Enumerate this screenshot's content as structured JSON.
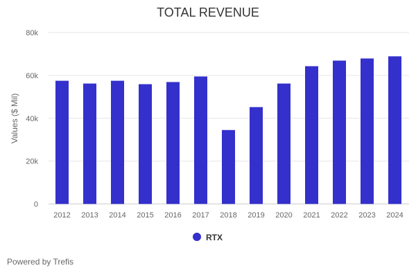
{
  "chart_data": {
    "type": "bar",
    "title": "TOTAL REVENUE",
    "xlabel": "",
    "ylabel": "Values ($ Mil)",
    "ylim": [
      0,
      80000
    ],
    "yticks": [
      0,
      20000,
      40000,
      60000,
      80000
    ],
    "ytick_labels": [
      "0",
      "20k",
      "40k",
      "60k",
      "80k"
    ],
    "grid": true,
    "categories": [
      "2012",
      "2013",
      "2014",
      "2015",
      "2016",
      "2017",
      "2018",
      "2019",
      "2020",
      "2021",
      "2022",
      "2023",
      "2024"
    ],
    "series": [
      {
        "name": "RTX",
        "color": "#3430cc",
        "values": [
          57500,
          56200,
          57500,
          55900,
          56900,
          59500,
          34500,
          45200,
          56200,
          64300,
          66900,
          67900,
          68900
        ]
      }
    ],
    "legend_position": "bottom"
  },
  "footer": {
    "powered_by": "Powered by Trefis"
  }
}
